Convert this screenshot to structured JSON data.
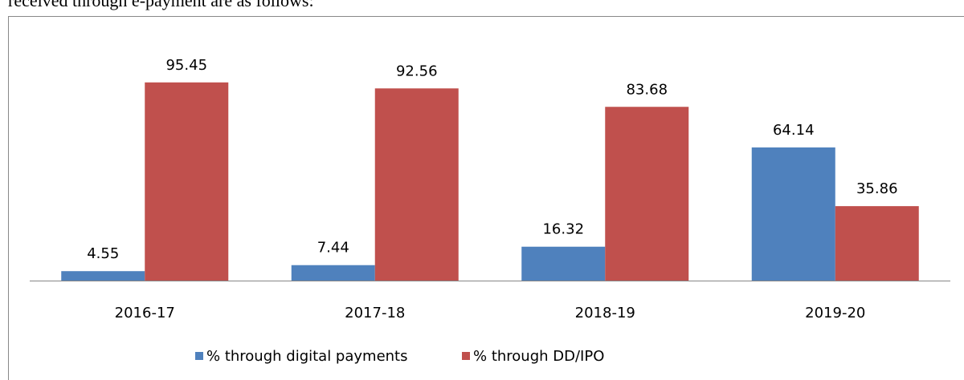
{
  "caption": "received through e-payment are as follows:",
  "chart_data": {
    "type": "bar",
    "categories": [
      "2016-17",
      "2017-18",
      "2018-19",
      "2019-20"
    ],
    "series": [
      {
        "name": "% through digital payments",
        "color": "#4f81bd",
        "values": [
          4.55,
          7.44,
          16.32,
          64.14
        ]
      },
      {
        "name": "% through DD/IPO",
        "color": "#c0504d",
        "values": [
          95.45,
          92.56,
          83.68,
          35.86
        ]
      }
    ],
    "ylim": [
      0,
      100
    ]
  }
}
